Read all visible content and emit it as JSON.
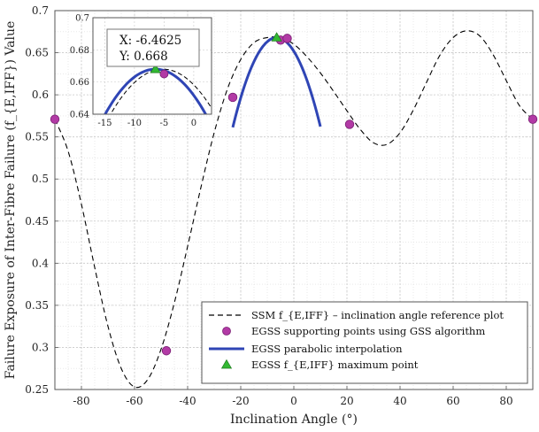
{
  "chart_data": {
    "type": "line",
    "xlabel": "Inclination Angle (°)",
    "ylabel": "Failure Exposure of Inter-Fibre Failure (f_{E,IFF}) Value",
    "xlim": [
      -90,
      90
    ],
    "ylim": [
      0.25,
      0.7
    ],
    "xticks": [
      -80,
      -60,
      -40,
      -20,
      0,
      20,
      40,
      60,
      80
    ],
    "yticks": [
      0.25,
      0.3,
      0.35,
      0.4,
      0.45,
      0.5,
      0.55,
      0.6,
      0.65,
      0.7
    ],
    "grid": true,
    "legend_position": "bottom-right",
    "series": [
      {
        "name": "SSM f_{E,IFF} – inclination angle reference plot",
        "style": "dashed",
        "color": "#000000",
        "x": [
          -90,
          -85,
          -80,
          -75,
          -70,
          -65,
          -60,
          -55,
          -50,
          -45,
          -40,
          -35,
          -30,
          -25,
          -20,
          -15,
          -10,
          -5,
          0,
          5,
          10,
          15,
          20,
          25,
          30,
          35,
          40,
          45,
          50,
          55,
          60,
          65,
          70,
          75,
          80,
          85,
          90
        ],
        "y": [
          0.571,
          0.533,
          0.47,
          0.395,
          0.325,
          0.275,
          0.253,
          0.262,
          0.298,
          0.353,
          0.42,
          0.49,
          0.555,
          0.607,
          0.642,
          0.662,
          0.668,
          0.668,
          0.66,
          0.645,
          0.626,
          0.604,
          0.581,
          0.559,
          0.543,
          0.541,
          0.555,
          0.582,
          0.615,
          0.647,
          0.668,
          0.676,
          0.67,
          0.648,
          0.617,
          0.587,
          0.571
        ]
      },
      {
        "name": "EGSS supporting points using GSS algorithm",
        "style": "markers",
        "color": "#b23aa5",
        "x": [
          -90,
          -48,
          -23,
          -5,
          -2.5,
          21,
          90
        ],
        "y": [
          0.571,
          0.296,
          0.597,
          0.665,
          0.667,
          0.565,
          0.571
        ]
      },
      {
        "name": "EGSS parabolic interpolation",
        "style": "solid",
        "color": "#2f45b5",
        "x_range": [
          -23,
          10
        ],
        "vertex": [
          -6.4625,
          0.668
        ],
        "curvature": -0.00039
      },
      {
        "name": "EGSS f_{E,IFF} maximum point",
        "style": "marker-triangle",
        "color": "#32b832",
        "x": [
          -6.4625
        ],
        "y": [
          0.668
        ]
      }
    ],
    "inset": {
      "xlim": [
        -17,
        3
      ],
      "ylim": [
        0.64,
        0.7
      ],
      "xticks": [
        -15,
        -10,
        -5,
        0
      ],
      "yticks": [
        0.64,
        0.66,
        0.68,
        0.7
      ]
    },
    "annotation": {
      "x_label": "X: -6.4625",
      "y_label": "Y: 0.668"
    }
  }
}
